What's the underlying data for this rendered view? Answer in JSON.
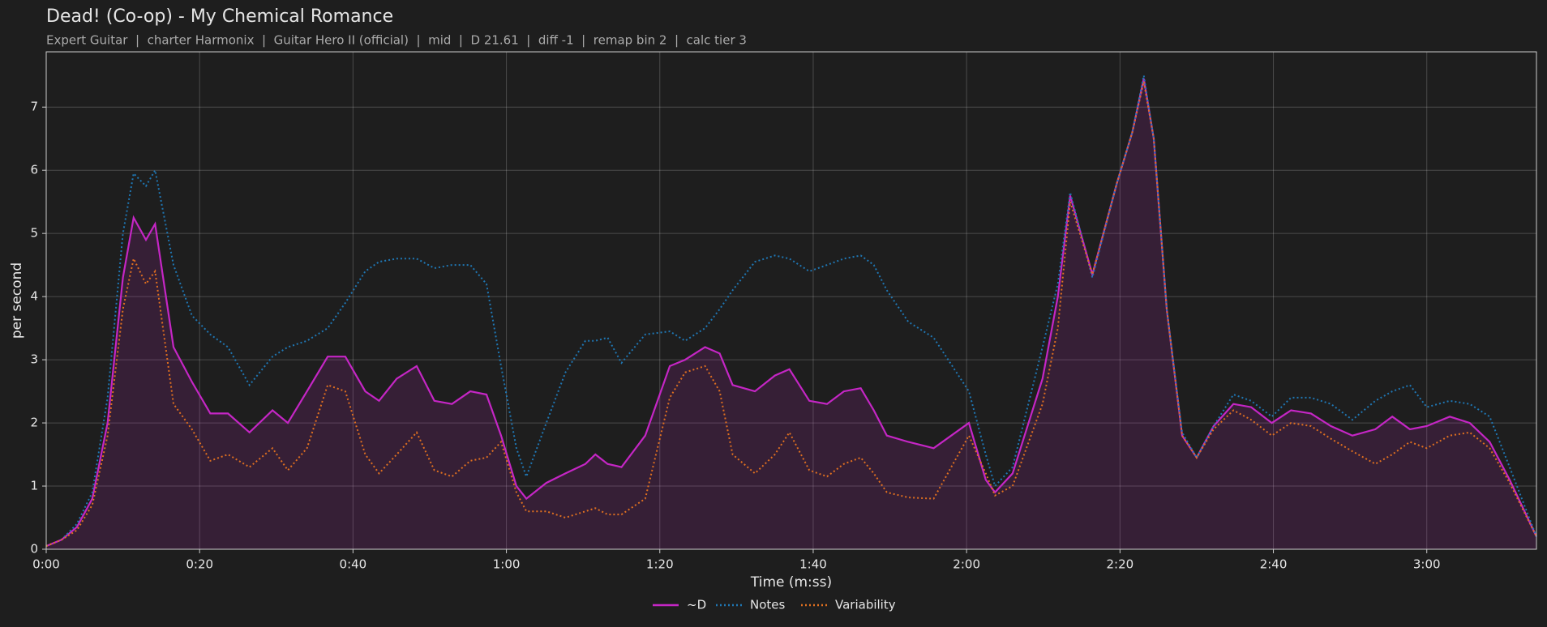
{
  "chart_data": {
    "type": "line",
    "title": "Dead! (Co-op) - My Chemical Romance",
    "subtitle": "Expert Guitar  |  charter Harmonix  |  Guitar Hero II (official)  |  mid  |  D 21.61  |  diff -1  |  remap bin 2  |  calc tier 3",
    "x_label": "Time (m:ss)",
    "y_label": "per second",
    "x": [
      0,
      2,
      4,
      6,
      8,
      10,
      11.4,
      13,
      14.2,
      16.6,
      19,
      21.4,
      23.7,
      26.5,
      29.5,
      31.5,
      34,
      36.7,
      39,
      41.6,
      43.4,
      45.7,
      48.3,
      50.6,
      52.9,
      55.3,
      57.4,
      59.3,
      61.3,
      62.6,
      65.2,
      67.7,
      70.3,
      71.6,
      73.2,
      75,
      78.1,
      81.3,
      83.3,
      85.9,
      87.8,
      89.5,
      92.4,
      95,
      96.9,
      99.5,
      101.8,
      104,
      106.2,
      107.9,
      109.6,
      112.4,
      115.7,
      120.3,
      122.5,
      123.7,
      126,
      129.9,
      131.9,
      133.5,
      136.4,
      139.6,
      141.6,
      143.1,
      144.4,
      146.1,
      148.1,
      150,
      152.2,
      154.8,
      157.1,
      159.8,
      162.3,
      164.9,
      167.5,
      170.3,
      173.3,
      175.5,
      177.8,
      180,
      183,
      185.6,
      188.2,
      190.8,
      194.3
    ],
    "series": [
      {
        "name": "~D",
        "color": "#c526c5",
        "dash": "solid",
        "fill": true,
        "values": [
          0.05,
          0.15,
          0.35,
          0.8,
          2.0,
          4.3,
          5.25,
          4.9,
          5.15,
          3.2,
          2.65,
          2.15,
          2.15,
          1.85,
          2.2,
          2.0,
          2.5,
          3.05,
          3.05,
          2.5,
          2.35,
          2.7,
          2.9,
          2.35,
          2.3,
          2.5,
          2.45,
          1.8,
          1.0,
          0.8,
          1.05,
          1.2,
          1.35,
          1.5,
          1.35,
          1.3,
          1.8,
          2.9,
          3.0,
          3.2,
          3.1,
          2.6,
          2.5,
          2.75,
          2.85,
          2.35,
          2.3,
          2.5,
          2.55,
          2.2,
          1.8,
          1.7,
          1.6,
          2.0,
          1.1,
          0.9,
          1.2,
          2.7,
          4.0,
          5.6,
          4.35,
          5.8,
          6.6,
          7.45,
          6.5,
          3.8,
          1.8,
          1.45,
          1.95,
          2.3,
          2.25,
          2.0,
          2.2,
          2.15,
          1.95,
          1.8,
          1.9,
          2.1,
          1.9,
          1.95,
          2.1,
          2.0,
          1.7,
          1.1,
          0.2
        ]
      },
      {
        "name": "Notes",
        "color": "#1f77b4",
        "dash": "dotted",
        "fill": false,
        "values": [
          0.05,
          0.15,
          0.4,
          0.9,
          2.4,
          5.0,
          5.95,
          5.75,
          6.0,
          4.5,
          3.7,
          3.4,
          3.2,
          2.6,
          3.05,
          3.2,
          3.3,
          3.5,
          3.9,
          4.4,
          4.55,
          4.6,
          4.6,
          4.45,
          4.5,
          4.5,
          4.2,
          2.9,
          1.6,
          1.15,
          2.0,
          2.8,
          3.3,
          3.3,
          3.35,
          2.95,
          3.4,
          3.45,
          3.3,
          3.5,
          3.8,
          4.1,
          4.55,
          4.65,
          4.6,
          4.4,
          4.5,
          4.6,
          4.65,
          4.5,
          4.1,
          3.6,
          3.35,
          2.5,
          1.5,
          1.0,
          1.3,
          3.2,
          4.2,
          5.65,
          4.3,
          5.8,
          6.6,
          7.5,
          6.5,
          3.8,
          1.85,
          1.45,
          1.95,
          2.45,
          2.35,
          2.1,
          2.4,
          2.4,
          2.3,
          2.05,
          2.35,
          2.5,
          2.6,
          2.25,
          2.35,
          2.3,
          2.1,
          1.3,
          0.2
        ]
      },
      {
        "name": "Variability",
        "color": "#e07020",
        "dash": "dotted",
        "fill": false,
        "values": [
          0.05,
          0.15,
          0.3,
          0.7,
          1.8,
          3.8,
          4.6,
          4.2,
          4.4,
          2.3,
          1.9,
          1.4,
          1.5,
          1.3,
          1.6,
          1.25,
          1.6,
          2.6,
          2.5,
          1.5,
          1.2,
          1.5,
          1.85,
          1.25,
          1.15,
          1.4,
          1.45,
          1.7,
          0.9,
          0.6,
          0.6,
          0.5,
          0.6,
          0.65,
          0.55,
          0.55,
          0.8,
          2.4,
          2.8,
          2.9,
          2.5,
          1.5,
          1.2,
          1.5,
          1.85,
          1.25,
          1.15,
          1.35,
          1.45,
          1.2,
          0.9,
          0.82,
          0.8,
          1.8,
          1.2,
          0.85,
          1.0,
          2.3,
          3.5,
          5.5,
          4.35,
          5.8,
          6.6,
          7.4,
          6.5,
          3.8,
          1.8,
          1.45,
          1.9,
          2.2,
          2.05,
          1.8,
          2.0,
          1.95,
          1.75,
          1.55,
          1.35,
          1.5,
          1.7,
          1.6,
          1.8,
          1.85,
          1.6,
          1.05,
          0.2
        ]
      }
    ],
    "xlim": [
      0,
      194.3
    ],
    "ylim": [
      0,
      7.875
    ],
    "xticks": [
      {
        "value": 0,
        "label": "0:00"
      },
      {
        "value": 20,
        "label": "0:20"
      },
      {
        "value": 40,
        "label": "0:40"
      },
      {
        "value": 60,
        "label": "1:00"
      },
      {
        "value": 80,
        "label": "1:20"
      },
      {
        "value": 100,
        "label": "1:40"
      },
      {
        "value": 120,
        "label": "2:00"
      },
      {
        "value": 140,
        "label": "2:20"
      },
      {
        "value": 160,
        "label": "2:40"
      },
      {
        "value": 180,
        "label": "3:00"
      }
    ],
    "yticks": [
      0,
      1,
      2,
      3,
      4,
      5,
      6,
      7
    ],
    "grid": true,
    "legend": "bottom"
  }
}
